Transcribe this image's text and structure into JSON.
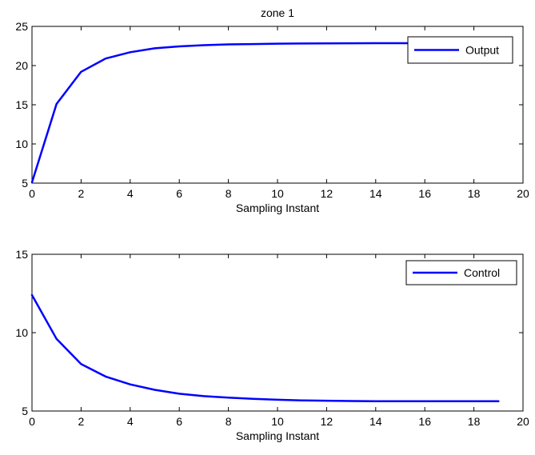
{
  "chart_data": [
    {
      "type": "line",
      "title": "zone 1",
      "xlabel": "Sampling Instant",
      "ylabel": "",
      "xlim": [
        0,
        20
      ],
      "ylim": [
        5,
        25
      ],
      "xticks": [
        0,
        2,
        4,
        6,
        8,
        10,
        12,
        14,
        16,
        18,
        20
      ],
      "yticks": [
        5,
        10,
        15,
        20,
        25
      ],
      "grid": false,
      "legend": "top-right",
      "series": [
        {
          "name": "Output",
          "color": "#0000ff",
          "x": [
            0,
            1,
            2,
            3,
            4,
            5,
            6,
            7,
            8,
            9,
            10,
            11,
            12,
            13,
            14,
            15,
            16,
            17,
            18,
            19
          ],
          "y": [
            5.1,
            15.1,
            19.2,
            20.9,
            21.7,
            22.2,
            22.45,
            22.6,
            22.7,
            22.75,
            22.8,
            22.82,
            22.84,
            22.85,
            22.86,
            22.86,
            22.86,
            22.86,
            22.86,
            22.86
          ]
        }
      ]
    },
    {
      "type": "line",
      "title": "",
      "xlabel": "Sampling Instant",
      "ylabel": "",
      "xlim": [
        0,
        20
      ],
      "ylim": [
        5,
        15
      ],
      "xticks": [
        0,
        2,
        4,
        6,
        8,
        10,
        12,
        14,
        16,
        18,
        20
      ],
      "yticks": [
        5,
        10,
        15
      ],
      "grid": false,
      "legend": "top-right",
      "series": [
        {
          "name": "Control",
          "color": "#0000ff",
          "x": [
            0,
            1,
            2,
            3,
            4,
            5,
            6,
            7,
            8,
            9,
            10,
            11,
            12,
            13,
            14,
            15,
            16,
            17,
            18,
            19
          ],
          "y": [
            12.4,
            9.6,
            8.0,
            7.2,
            6.7,
            6.35,
            6.1,
            5.95,
            5.85,
            5.78,
            5.72,
            5.68,
            5.66,
            5.64,
            5.63,
            5.62,
            5.62,
            5.62,
            5.62,
            5.62
          ]
        }
      ]
    }
  ]
}
